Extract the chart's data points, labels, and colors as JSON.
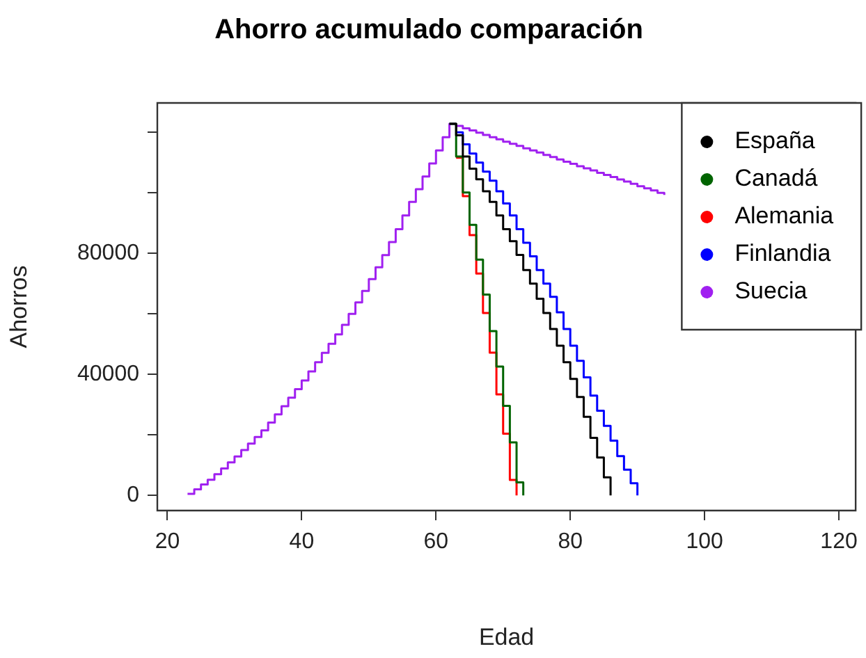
{
  "chart_data": {
    "type": "step",
    "title": "Ahorro acumulado comparación",
    "xlabel": "Edad",
    "ylabel": "Ahorros",
    "xlim": [
      18.5,
      122.5
    ],
    "xticks": [
      20,
      40,
      60,
      80,
      100,
      120
    ],
    "ylim": [
      -5000,
      129700
    ],
    "yticks": [
      0,
      {
        "value": 20000,
        "label": null
      },
      40000,
      {
        "value": 60000,
        "label": null
      },
      80000,
      {
        "value": 100000,
        "label": null
      },
      {
        "value": 120000,
        "label": null
      }
    ],
    "legend": "top right",
    "series": [
      {
        "name": "España",
        "color": "#000000",
        "x": [
          62,
          63,
          64,
          65,
          66,
          67,
          68,
          69,
          70,
          71,
          72,
          73,
          74,
          75,
          76,
          77,
          78,
          79,
          80,
          81,
          82,
          83,
          84,
          85,
          86
        ],
        "values": [
          122800,
          119000,
          112000,
          108000,
          104500,
          100500,
          97000,
          92500,
          88000,
          84000,
          79500,
          74500,
          70000,
          65000,
          60300,
          55000,
          49500,
          44000,
          38500,
          32500,
          26000,
          19000,
          12500,
          6000,
          0
        ]
      },
      {
        "name": "Canadá",
        "color": "#006400",
        "x": [
          62,
          63,
          64,
          65,
          66,
          67,
          68,
          69,
          70,
          71,
          72,
          73
        ],
        "values": [
          122800,
          112000,
          100100,
          89400,
          77900,
          66400,
          54300,
          42600,
          29600,
          17500,
          4300,
          0
        ]
      },
      {
        "name": "Alemania",
        "color": "#ff0000",
        "x": [
          63,
          64,
          65,
          66,
          67,
          68,
          69,
          70,
          71,
          72
        ],
        "values": [
          111600,
          98900,
          86000,
          73300,
          60300,
          47200,
          33400,
          20400,
          5100,
          0
        ]
      },
      {
        "name": "Finlandia",
        "color": "#0000ff",
        "x": [
          63,
          64,
          65,
          66,
          67,
          68,
          69,
          70,
          71,
          72,
          73,
          74,
          75,
          76,
          77,
          78,
          79,
          80,
          81,
          82,
          83,
          84,
          85,
          86,
          87,
          88,
          89,
          90
        ],
        "values": [
          120000,
          116000,
          113000,
          110000,
          107000,
          104000,
          100500,
          96500,
          92500,
          88000,
          83500,
          79000,
          74500,
          70000,
          65600,
          60500,
          55000,
          49500,
          44500,
          39000,
          33000,
          28000,
          23000,
          18100,
          13000,
          8500,
          4000,
          0
        ]
      },
      {
        "name": "Suecia",
        "color": "#a020f0",
        "x": [
          23,
          24,
          25,
          26,
          27,
          28,
          29,
          30,
          31,
          32,
          33,
          34,
          35,
          36,
          37,
          38,
          39,
          40,
          41,
          42,
          43,
          44,
          45,
          46,
          47,
          48,
          49,
          50,
          51,
          52,
          53,
          54,
          55,
          56,
          57,
          58,
          59,
          60,
          61,
          62,
          63,
          64,
          65,
          66,
          67,
          68,
          69,
          70,
          71,
          72,
          73,
          74,
          75,
          76,
          77,
          78,
          79,
          80,
          81,
          82,
          83,
          84,
          85,
          86,
          87,
          88,
          89,
          90,
          91,
          92,
          93,
          94
        ],
        "values": [
          500,
          2000,
          3600,
          5200,
          7000,
          8900,
          10900,
          12900,
          15000,
          17100,
          19300,
          21500,
          24100,
          26800,
          29500,
          32300,
          35100,
          38000,
          41000,
          44000,
          47100,
          50100,
          53200,
          56400,
          60000,
          63800,
          67600,
          71500,
          75400,
          79400,
          83700,
          88000,
          92500,
          97000,
          101200,
          105400,
          109700,
          114000,
          118400,
          122800,
          122100,
          121300,
          120600,
          119900,
          119100,
          118400,
          117700,
          116900,
          116200,
          115500,
          114700,
          114000,
          113300,
          112500,
          111800,
          111000,
          110300,
          109600,
          108800,
          108100,
          107400,
          106600,
          105900,
          105200,
          104400,
          103700,
          103000,
          102200,
          101500,
          100800,
          100000,
          99300
        ]
      }
    ]
  }
}
